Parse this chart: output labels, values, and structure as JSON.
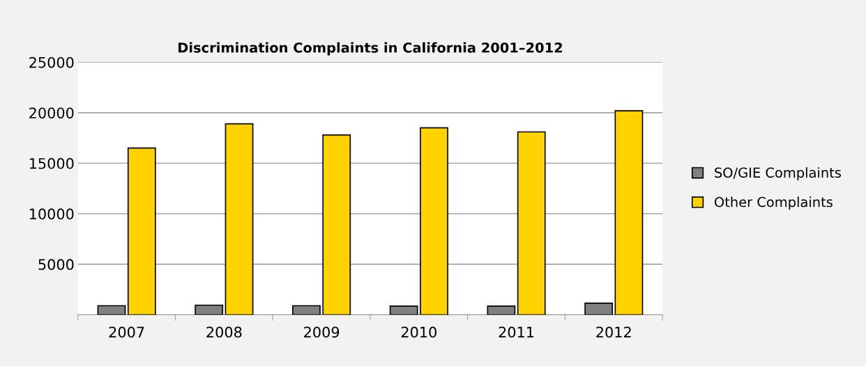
{
  "chart_data": {
    "type": "bar",
    "title": "Discrimination Complaints in California 2001–2012",
    "categories": [
      "2007",
      "2008",
      "2009",
      "2010",
      "2011",
      "2012"
    ],
    "series": [
      {
        "name": "SO/GIE Complaints",
        "color": "#808080",
        "values": [
          900,
          950,
          900,
          850,
          850,
          1150
        ]
      },
      {
        "name": "Other Complaints",
        "color": "#ffd200",
        "values": [
          16500,
          18900,
          17800,
          18500,
          18100,
          20200
        ]
      }
    ],
    "ylim": [
      0,
      25000
    ],
    "yticks": [
      5000,
      10000,
      15000,
      20000,
      25000
    ],
    "grid": "y",
    "legend": "right"
  }
}
